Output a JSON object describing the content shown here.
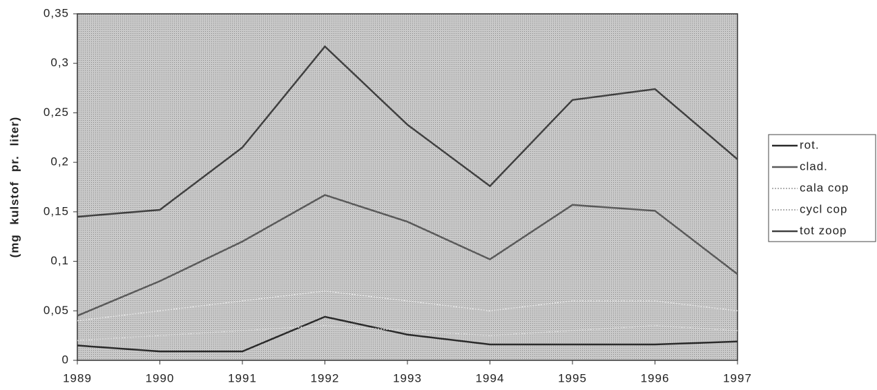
{
  "chart_data": {
    "type": "line",
    "y_label": "(mg kulstof pr. liter)",
    "x": [
      1989,
      1990,
      1991,
      1992,
      1993,
      1994,
      1995,
      1996,
      1997
    ],
    "xlim": [
      1989,
      1997
    ],
    "xticks": [
      1989,
      1990,
      1991,
      1992,
      1993,
      1994,
      1995,
      1996,
      1997
    ],
    "ylim": [
      0,
      0.35
    ],
    "yticks": [
      0,
      {
        "value": 0.05,
        "label": "0,05"
      },
      {
        "value": 0.1,
        "label": "0,1"
      },
      {
        "value": 0.15,
        "label": "0,15"
      },
      {
        "value": 0.2,
        "label": "0,2"
      },
      {
        "value": 0.25,
        "label": "0,25"
      },
      {
        "value": 0.3,
        "label": "0,3"
      },
      {
        "value": 0.35,
        "label": "0,35"
      }
    ],
    "series": [
      {
        "name": "rot.",
        "color": "#2a2a2a",
        "values": [
          0.015,
          0.009,
          0.009,
          0.044,
          0.026,
          0.016,
          0.016,
          0.016,
          0.019
        ]
      },
      {
        "name": "clad.",
        "color": "#5a5a5a",
        "values": [
          0.045,
          0.08,
          0.12,
          0.167,
          0.14,
          0.102,
          0.157,
          0.151,
          0.087
        ]
      },
      {
        "name": "cala cop",
        "color": "#e8e8e8",
        "dashed": true,
        "values": [
          0.04,
          0.05,
          0.06,
          0.07,
          0.06,
          0.05,
          0.06,
          0.06,
          0.05
        ]
      },
      {
        "name": "cycl cop",
        "color": "#dcdcdc",
        "dashed": true,
        "values": [
          0.02,
          0.025,
          0.03,
          0.035,
          0.03,
          0.025,
          0.03,
          0.035,
          0.03
        ]
      },
      {
        "name": "tot zoop",
        "color": "#404040",
        "values": [
          0.145,
          0.152,
          0.215,
          0.317,
          0.238,
          0.176,
          0.263,
          0.274,
          0.203
        ]
      }
    ]
  }
}
